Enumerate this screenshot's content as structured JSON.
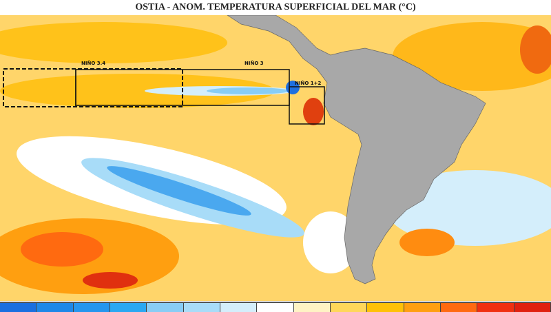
{
  "title": "OSTIA - ANOM. TEMPERATURA SUPERFICIAL DEL MAR (°C)",
  "regions": {
    "nino34": "NIÑO 3.4",
    "nino3": "NIÑO 3",
    "nino12": "NIÑO 1+2"
  },
  "colorbar": [
    "#1a6fe0",
    "#1e88e8",
    "#2596ee",
    "#2aa8f2",
    "#88cdf5",
    "#a8dcf8",
    "#d4eefb",
    "#ffffff",
    "#fff3c4",
    "#ffd75a",
    "#ffc107",
    "#ff9f10",
    "#ff6a10",
    "#f03010",
    "#e0200f"
  ]
}
